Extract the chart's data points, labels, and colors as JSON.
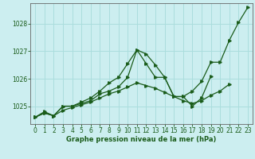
{
  "title": "",
  "xlabel": "Graphe pression niveau de la mer (hPa)",
  "background_color": "#cceef0",
  "grid_color": "#aadddd",
  "line_color": "#1a5c1a",
  "ylim": [
    1024.35,
    1028.75
  ],
  "xlim": [
    -0.5,
    23.5
  ],
  "yticks": [
    1025,
    1026,
    1027,
    1028
  ],
  "xticks": [
    0,
    1,
    2,
    3,
    4,
    5,
    6,
    7,
    8,
    9,
    10,
    11,
    12,
    13,
    14,
    15,
    16,
    17,
    18,
    19,
    20,
    21,
    22,
    23
  ],
  "series": [
    {
      "x": [
        0,
        1,
        2,
        3,
        4,
        5,
        6,
        7,
        8,
        9,
        10,
        11,
        12,
        13,
        14,
        15,
        16,
        17,
        18,
        19,
        20,
        21,
        22,
        23
      ],
      "y": [
        1024.6,
        1024.75,
        1024.65,
        1024.85,
        1024.95,
        1025.05,
        1025.15,
        1025.3,
        1025.45,
        1025.55,
        1025.7,
        1025.85,
        1025.75,
        1025.65,
        1025.5,
        1025.35,
        1025.2,
        1025.1,
        1025.2,
        1025.4,
        1025.55,
        1025.8,
        null,
        null
      ]
    },
    {
      "x": [
        0,
        1,
        2,
        3,
        4,
        5,
        6,
        7,
        8,
        9,
        10,
        11,
        12,
        13,
        14,
        15,
        16,
        17,
        18,
        19,
        20,
        21,
        22,
        23
      ],
      "y": [
        1024.6,
        1024.75,
        1024.65,
        1025.0,
        1025.0,
        1025.1,
        1025.2,
        1025.45,
        1025.55,
        1025.7,
        1026.05,
        1027.05,
        1026.9,
        1026.5,
        1026.05,
        1025.35,
        1025.35,
        1025.0,
        1025.3,
        1026.1,
        null,
        null,
        null,
        null
      ]
    },
    {
      "x": [
        0,
        1,
        2,
        3,
        4,
        5,
        6,
        7,
        8,
        9,
        10,
        11,
        12,
        13,
        14,
        15,
        16,
        17,
        18,
        19,
        20,
        21,
        22,
        23
      ],
      "y": [
        1024.6,
        1024.8,
        1024.65,
        1025.0,
        1025.0,
        1025.15,
        1025.3,
        1025.55,
        1025.85,
        1026.05,
        1026.55,
        1027.05,
        1026.55,
        1026.05,
        1026.05,
        1025.35,
        1025.35,
        1025.55,
        1025.9,
        1026.6,
        1026.6,
        1027.4,
        1028.05,
        1028.6
      ]
    }
  ]
}
